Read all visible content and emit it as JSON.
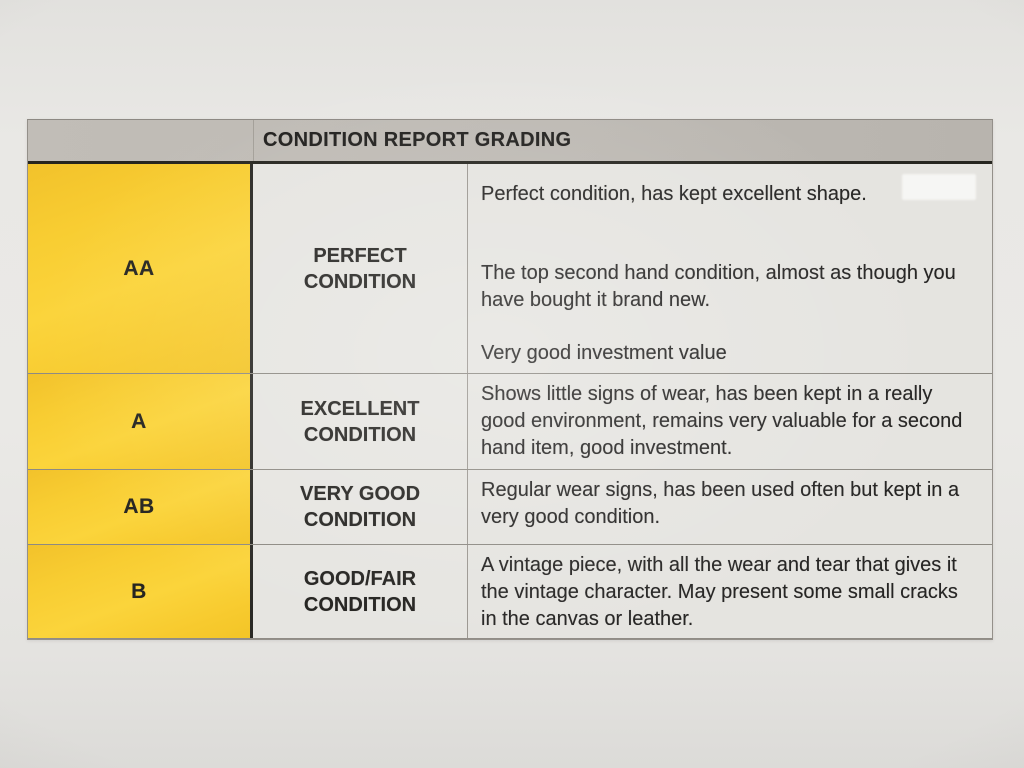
{
  "document": {
    "title": "CONDITION REPORT GRADING",
    "grading_table": {
      "rows": [
        {
          "grade": "AA",
          "label_lines": [
            "PERFECT",
            "CONDITION"
          ],
          "paragraphs": [
            "Perfect condition, has kept excellent shape.",
            "The top second hand condition, almost as though you have bought it brand new.",
            "Very good investment value"
          ]
        },
        {
          "grade": "A",
          "label_lines": [
            "EXCELLENT",
            "CONDITION"
          ],
          "paragraphs": [
            "Shows little signs of wear, has been kept in a really good environment, remains very valuable for a second hand item, good investment."
          ]
        },
        {
          "grade": "AB",
          "label_lines": [
            "VERY GOOD",
            "CONDITION"
          ],
          "paragraphs": [
            "Regular wear signs, has been used often but kept in a very good condition."
          ]
        },
        {
          "grade": "B",
          "label_lines": [
            "GOOD/FAIR",
            "CONDITION"
          ],
          "paragraphs": [
            "A vintage piece, with all the wear and tear that gives it the vintage character. May present some small cracks in the canvas or leather."
          ]
        }
      ]
    },
    "colors": {
      "grade_column_yellow": "#F7CA2E",
      "header_gray": "#BDB9B3",
      "paper_background": "#E8E7E4",
      "cell_background": "#E5E4E0",
      "text": "#2B2A28",
      "heavy_divider": "#2A2925"
    }
  }
}
